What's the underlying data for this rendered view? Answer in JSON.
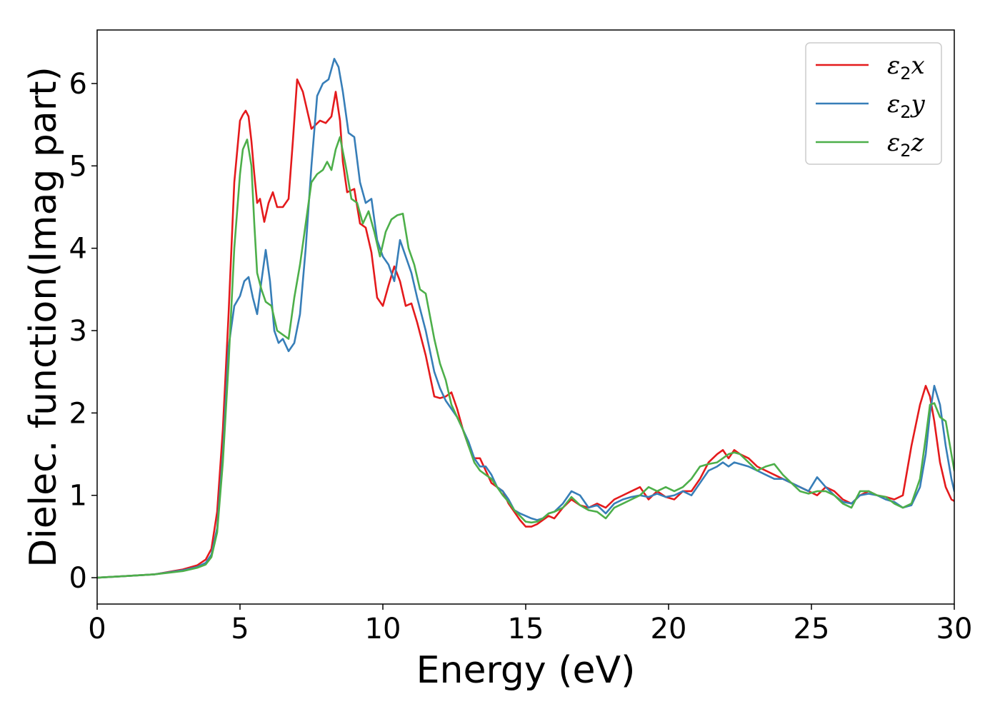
{
  "chart_data": {
    "type": "line",
    "title": "",
    "xlabel": "Energy (eV)",
    "ylabel": "Dielec. function(Imag part)",
    "xlim": [
      0,
      30
    ],
    "ylim": [
      -0.32,
      6.65
    ],
    "xticks": [
      0,
      5,
      10,
      15,
      20,
      25,
      30
    ],
    "yticks": [
      0,
      1,
      2,
      3,
      4,
      5,
      6
    ],
    "grid": false,
    "legend_position": "top-right",
    "series": [
      {
        "name": "ε2x",
        "legend_base": "ε",
        "legend_sub": "2",
        "legend_axis": "x",
        "color": "#e41a1c",
        "x": [
          0,
          1,
          2,
          3,
          3.5,
          3.8,
          4.0,
          4.2,
          4.4,
          4.6,
          4.8,
          5.0,
          5.1,
          5.2,
          5.3,
          5.4,
          5.5,
          5.6,
          5.7,
          5.85,
          6.0,
          6.15,
          6.3,
          6.5,
          6.7,
          6.85,
          7.0,
          7.2,
          7.5,
          7.8,
          8.0,
          8.2,
          8.35,
          8.5,
          8.6,
          8.75,
          9.0,
          9.2,
          9.4,
          9.6,
          9.8,
          10.0,
          10.2,
          10.4,
          10.6,
          10.8,
          11.0,
          11.2,
          11.5,
          11.8,
          12.0,
          12.2,
          12.4,
          12.6,
          12.8,
          13.0,
          13.2,
          13.4,
          13.6,
          13.8,
          14.0,
          14.2,
          14.4,
          14.6,
          14.8,
          15.0,
          15.2,
          15.4,
          15.6,
          15.8,
          16.0,
          16.3,
          16.6,
          16.9,
          17.2,
          17.5,
          17.8,
          18.1,
          18.4,
          18.7,
          19.0,
          19.3,
          19.6,
          19.9,
          20.2,
          20.5,
          20.8,
          21.1,
          21.4,
          21.7,
          21.9,
          22.1,
          22.3,
          22.5,
          22.8,
          23.1,
          23.4,
          23.7,
          24.0,
          24.3,
          24.6,
          24.9,
          25.2,
          25.5,
          25.8,
          26.1,
          26.4,
          26.7,
          27.0,
          27.3,
          27.6,
          27.9,
          28.2,
          28.5,
          28.8,
          29.0,
          29.15,
          29.3,
          29.5,
          29.7,
          29.9,
          30.0
        ],
        "y": [
          0.0,
          0.02,
          0.04,
          0.1,
          0.15,
          0.22,
          0.35,
          0.8,
          1.8,
          3.2,
          4.8,
          5.55,
          5.62,
          5.67,
          5.6,
          5.3,
          4.9,
          4.55,
          4.6,
          4.32,
          4.55,
          4.68,
          4.5,
          4.5,
          4.6,
          5.3,
          6.05,
          5.9,
          5.45,
          5.55,
          5.52,
          5.6,
          5.9,
          5.55,
          5.05,
          4.68,
          4.72,
          4.3,
          4.25,
          3.95,
          3.4,
          3.3,
          3.55,
          3.78,
          3.6,
          3.3,
          3.33,
          3.1,
          2.7,
          2.2,
          2.18,
          2.2,
          2.25,
          2.05,
          1.8,
          1.6,
          1.45,
          1.45,
          1.3,
          1.15,
          1.1,
          1.05,
          0.9,
          0.8,
          0.7,
          0.62,
          0.62,
          0.65,
          0.7,
          0.75,
          0.72,
          0.85,
          0.95,
          0.88,
          0.85,
          0.9,
          0.85,
          0.95,
          1.0,
          1.05,
          1.1,
          0.95,
          1.05,
          0.98,
          0.95,
          1.05,
          1.05,
          1.2,
          1.4,
          1.5,
          1.55,
          1.45,
          1.55,
          1.5,
          1.45,
          1.35,
          1.3,
          1.25,
          1.2,
          1.15,
          1.1,
          1.05,
          1.0,
          1.1,
          1.05,
          0.95,
          0.9,
          1.0,
          1.05,
          1.0,
          0.98,
          0.95,
          1.0,
          1.6,
          2.1,
          2.33,
          2.2,
          1.9,
          1.4,
          1.1,
          0.95,
          0.93
        ]
      },
      {
        "name": "ε2y",
        "legend_base": "ε",
        "legend_sub": "2",
        "legend_axis": "y",
        "color": "#377eb8",
        "x": [
          0,
          1,
          2,
          3,
          3.5,
          3.8,
          4.0,
          4.2,
          4.4,
          4.6,
          4.8,
          5.0,
          5.15,
          5.3,
          5.45,
          5.6,
          5.75,
          5.9,
          6.05,
          6.2,
          6.35,
          6.5,
          6.7,
          6.9,
          7.1,
          7.3,
          7.5,
          7.7,
          7.9,
          8.1,
          8.3,
          8.45,
          8.6,
          8.8,
          9.0,
          9.2,
          9.4,
          9.6,
          9.8,
          10.0,
          10.2,
          10.4,
          10.6,
          10.8,
          11.0,
          11.2,
          11.5,
          11.8,
          12.0,
          12.2,
          12.4,
          12.6,
          12.8,
          13.0,
          13.2,
          13.4,
          13.6,
          13.8,
          14.0,
          14.2,
          14.4,
          14.6,
          14.8,
          15.0,
          15.2,
          15.4,
          15.6,
          15.8,
          16.0,
          16.3,
          16.6,
          16.9,
          17.2,
          17.5,
          17.8,
          18.1,
          18.4,
          18.7,
          19.0,
          19.3,
          19.6,
          19.9,
          20.2,
          20.5,
          20.8,
          21.1,
          21.4,
          21.7,
          21.9,
          22.1,
          22.3,
          22.5,
          22.8,
          23.1,
          23.4,
          23.7,
          24.0,
          24.3,
          24.6,
          24.9,
          25.2,
          25.5,
          25.8,
          26.1,
          26.4,
          26.7,
          27.0,
          27.3,
          27.6,
          27.9,
          28.2,
          28.5,
          28.8,
          29.0,
          29.15,
          29.3,
          29.5,
          29.7,
          29.9,
          30.0
        ],
        "y": [
          0.0,
          0.02,
          0.04,
          0.09,
          0.13,
          0.18,
          0.28,
          0.6,
          1.5,
          2.8,
          3.3,
          3.42,
          3.6,
          3.65,
          3.4,
          3.2,
          3.6,
          3.98,
          3.6,
          3.0,
          2.85,
          2.9,
          2.75,
          2.85,
          3.2,
          4.0,
          5.0,
          5.85,
          6.0,
          6.05,
          6.3,
          6.2,
          5.9,
          5.4,
          5.35,
          4.8,
          4.55,
          4.6,
          4.1,
          3.9,
          3.8,
          3.6,
          4.1,
          3.9,
          3.7,
          3.4,
          3.0,
          2.5,
          2.3,
          2.15,
          2.05,
          1.95,
          1.8,
          1.65,
          1.45,
          1.35,
          1.35,
          1.25,
          1.1,
          1.05,
          0.95,
          0.82,
          0.78,
          0.75,
          0.72,
          0.7,
          0.72,
          0.78,
          0.8,
          0.9,
          1.05,
          1.0,
          0.85,
          0.88,
          0.78,
          0.9,
          0.95,
          0.98,
          1.0,
          0.98,
          1.02,
          0.98,
          1.0,
          1.05,
          1.0,
          1.15,
          1.3,
          1.35,
          1.4,
          1.35,
          1.4,
          1.38,
          1.35,
          1.3,
          1.25,
          1.2,
          1.2,
          1.15,
          1.1,
          1.05,
          1.22,
          1.1,
          1.0,
          0.92,
          0.9,
          1.0,
          1.02,
          1.0,
          0.95,
          0.92,
          0.85,
          0.88,
          1.1,
          1.5,
          2.0,
          2.33,
          2.1,
          1.6,
          1.2,
          1.05
        ]
      },
      {
        "name": "ε2z",
        "legend_base": "ε",
        "legend_sub": "2",
        "legend_axis": "z",
        "color": "#4daf4a",
        "x": [
          0,
          1,
          2,
          3,
          3.5,
          3.8,
          4.0,
          4.2,
          4.4,
          4.6,
          4.8,
          5.0,
          5.1,
          5.25,
          5.4,
          5.5,
          5.6,
          5.75,
          5.9,
          6.1,
          6.3,
          6.5,
          6.7,
          6.9,
          7.1,
          7.3,
          7.5,
          7.7,
          7.9,
          8.05,
          8.2,
          8.35,
          8.5,
          8.7,
          8.9,
          9.1,
          9.3,
          9.5,
          9.7,
          9.9,
          10.1,
          10.3,
          10.5,
          10.7,
          10.9,
          11.1,
          11.3,
          11.5,
          11.8,
          12.0,
          12.2,
          12.4,
          12.6,
          12.8,
          13.0,
          13.2,
          13.4,
          13.6,
          13.8,
          14.0,
          14.2,
          14.4,
          14.6,
          14.8,
          15.0,
          15.2,
          15.4,
          15.6,
          15.8,
          16.0,
          16.3,
          16.6,
          16.9,
          17.2,
          17.5,
          17.8,
          18.1,
          18.4,
          18.7,
          19.0,
          19.3,
          19.6,
          19.9,
          20.2,
          20.5,
          20.8,
          21.1,
          21.4,
          21.7,
          21.9,
          22.1,
          22.3,
          22.5,
          22.8,
          23.1,
          23.4,
          23.7,
          24.0,
          24.3,
          24.6,
          24.9,
          25.2,
          25.5,
          25.8,
          26.1,
          26.4,
          26.7,
          27.0,
          27.3,
          27.6,
          27.9,
          28.2,
          28.5,
          28.8,
          29.0,
          29.15,
          29.3,
          29.5,
          29.7,
          29.9,
          30.0
        ],
        "y": [
          0.0,
          0.02,
          0.04,
          0.08,
          0.12,
          0.16,
          0.25,
          0.55,
          1.4,
          2.6,
          4.0,
          4.9,
          5.2,
          5.32,
          5.0,
          4.3,
          3.7,
          3.5,
          3.35,
          3.3,
          3.0,
          2.95,
          2.9,
          3.4,
          3.8,
          4.3,
          4.8,
          4.9,
          4.95,
          5.05,
          4.95,
          5.2,
          5.35,
          5.0,
          4.6,
          4.55,
          4.3,
          4.45,
          4.2,
          3.9,
          4.2,
          4.35,
          4.4,
          4.42,
          4.0,
          3.8,
          3.5,
          3.45,
          2.9,
          2.6,
          2.4,
          2.1,
          1.95,
          1.8,
          1.6,
          1.4,
          1.3,
          1.25,
          1.2,
          1.1,
          1.0,
          0.92,
          0.82,
          0.75,
          0.68,
          0.67,
          0.68,
          0.72,
          0.78,
          0.8,
          0.85,
          0.98,
          0.88,
          0.82,
          0.8,
          0.72,
          0.85,
          0.9,
          0.95,
          1.0,
          1.1,
          1.05,
          1.1,
          1.05,
          1.1,
          1.2,
          1.35,
          1.38,
          1.4,
          1.45,
          1.5,
          1.52,
          1.5,
          1.4,
          1.3,
          1.35,
          1.38,
          1.25,
          1.15,
          1.05,
          1.02,
          1.05,
          1.05,
          1.0,
          0.9,
          0.85,
          1.05,
          1.05,
          1.0,
          0.98,
          0.9,
          0.85,
          0.9,
          1.2,
          1.7,
          2.1,
          2.12,
          1.95,
          1.9,
          1.5,
          1.3
        ]
      }
    ]
  }
}
